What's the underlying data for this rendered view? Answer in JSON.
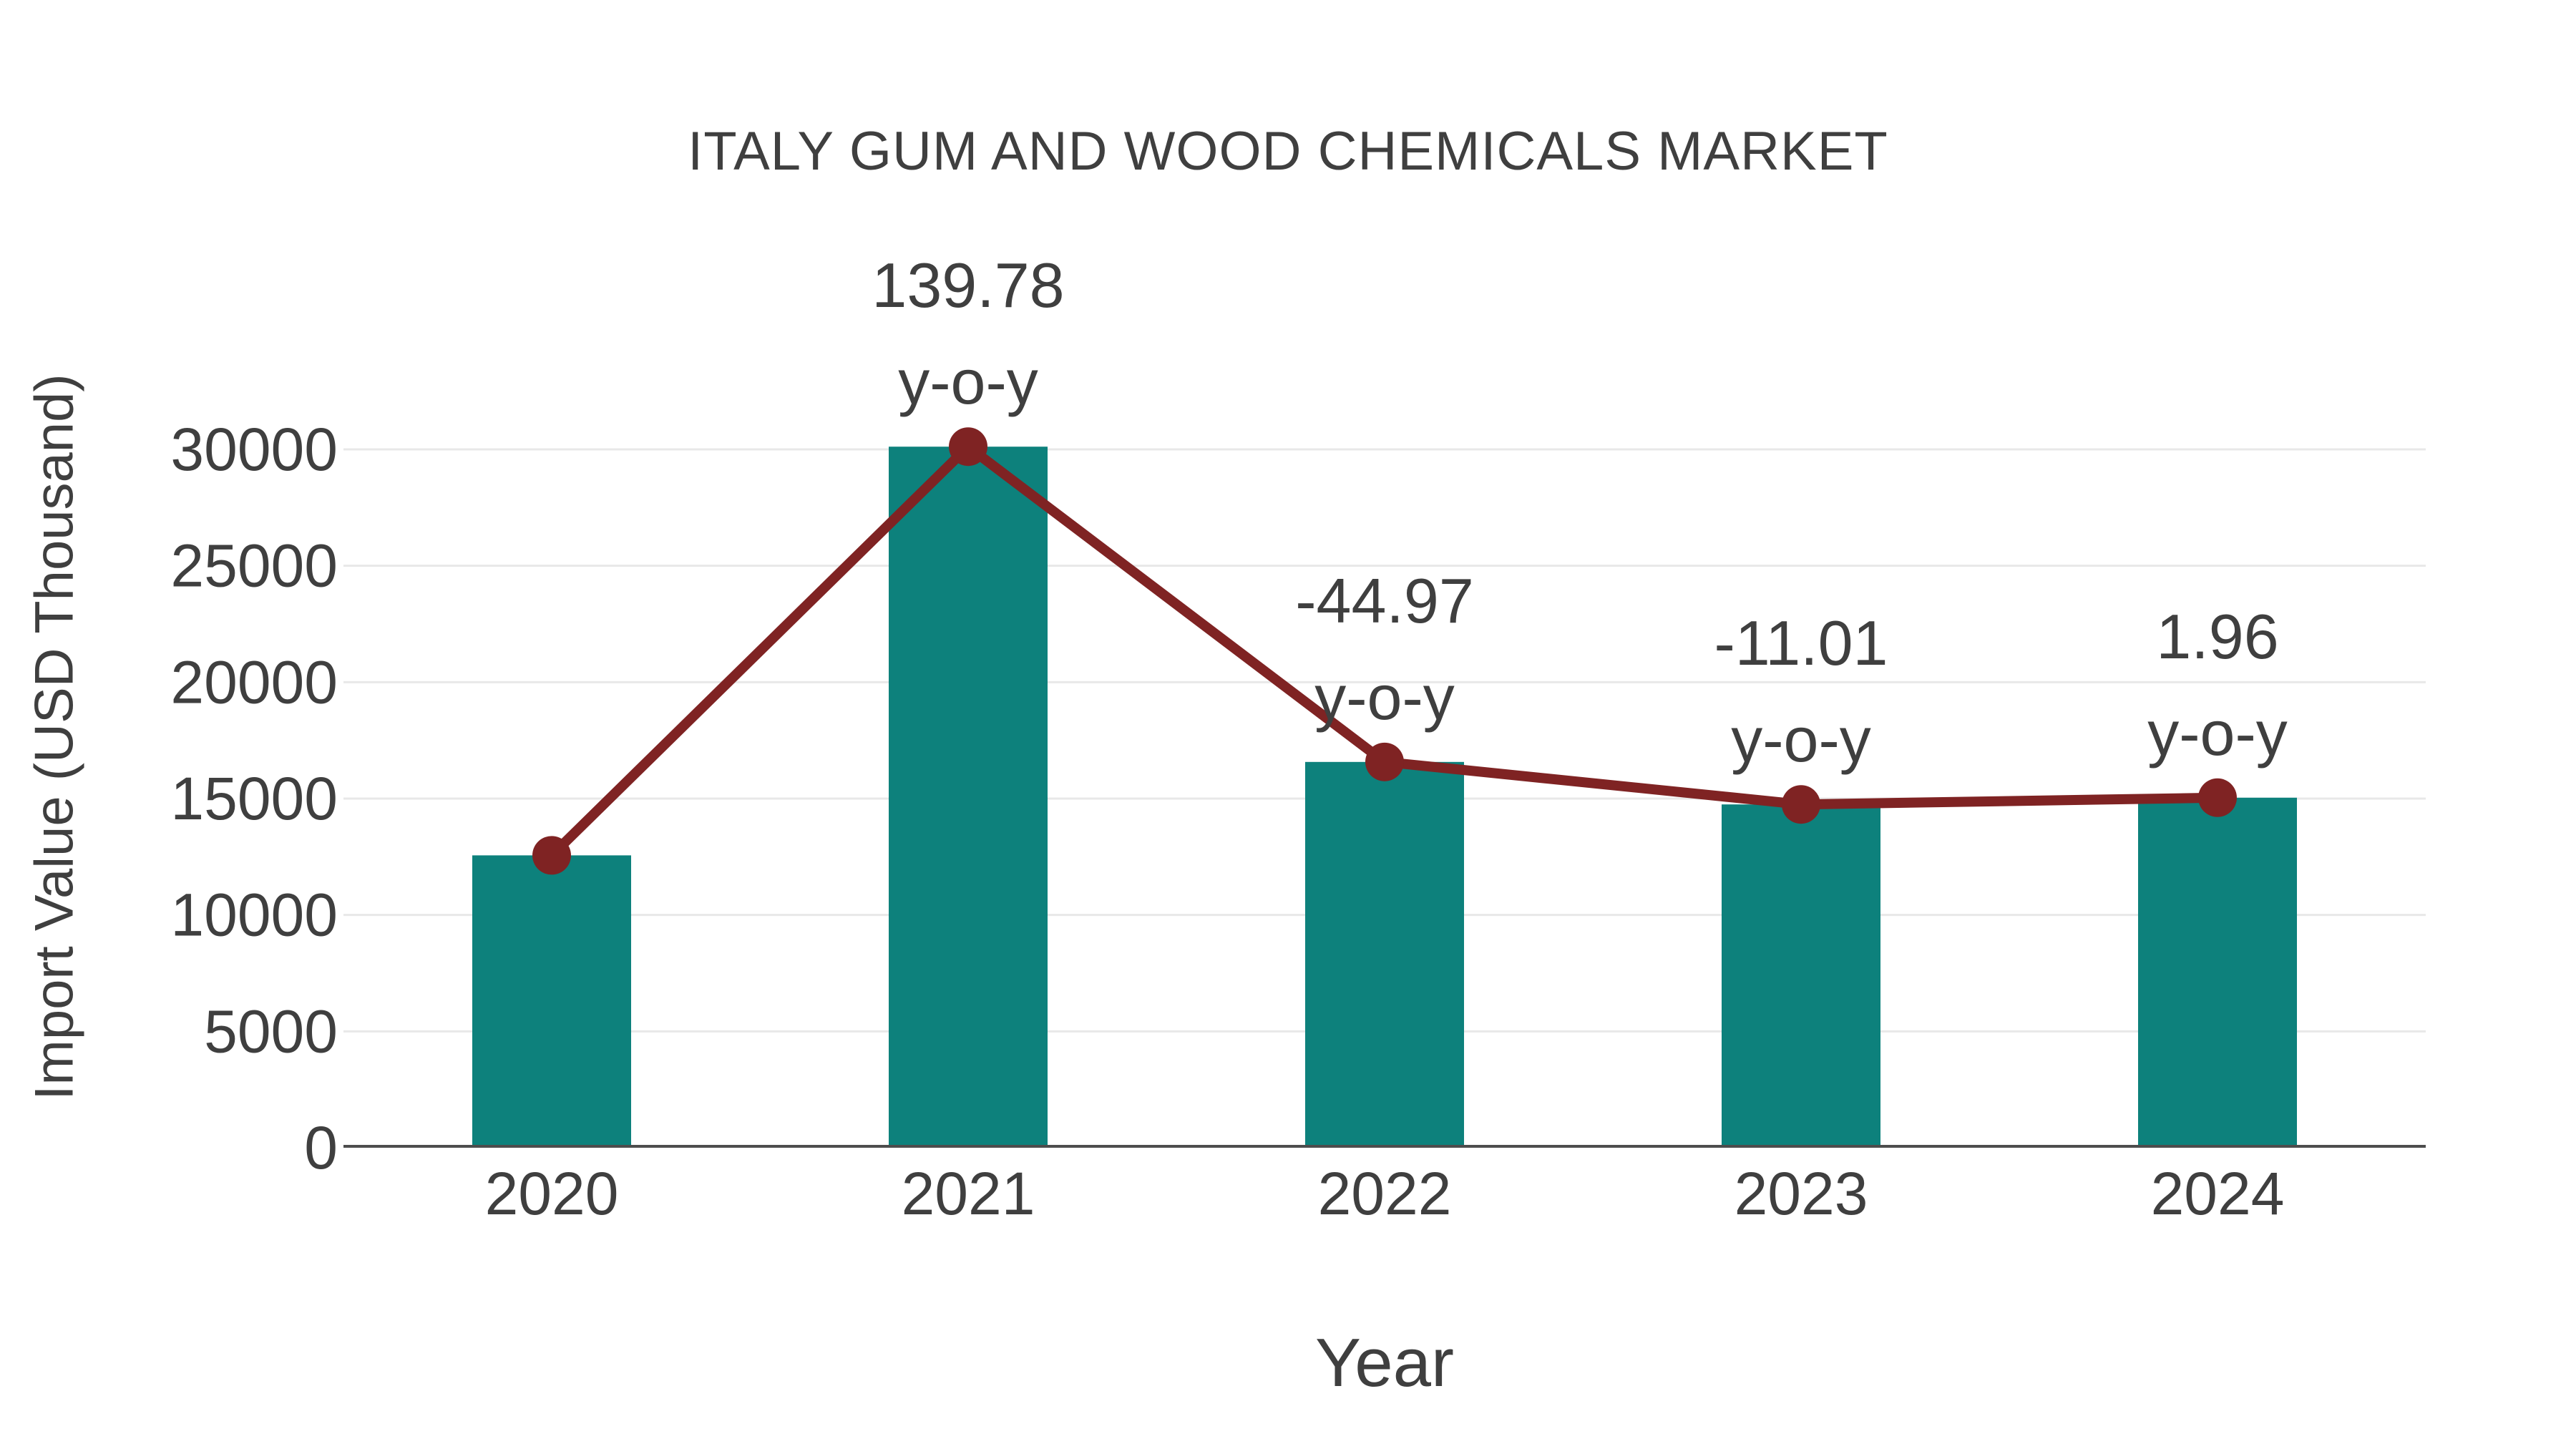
{
  "title": "ITALY GUM AND WOOD CHEMICALS MARKET",
  "colors": {
    "background": "#ffffff",
    "bar": "#0d817c",
    "line": "#7f2323",
    "marker": "#7f2323",
    "text": "#3f3f3f",
    "axis": "#4d4d4d",
    "grid": "#e8e8e8"
  },
  "chart_data": {
    "type": "bar",
    "title": "ITALY GUM AND WOOD CHEMICALS MARKET",
    "xlabel": "Year",
    "ylabel": "Import Value (USD Thousand)",
    "categories": [
      "2020",
      "2021",
      "2022",
      "2023",
      "2024"
    ],
    "series": [
      {
        "name": "Import Value (USD Thousand)",
        "type": "bar",
        "values": [
          12560,
          30116,
          16573,
          14748,
          15037
        ]
      },
      {
        "name": "y-o-y trend line",
        "type": "line",
        "values": [
          12560,
          30116,
          16573,
          14748,
          15037
        ]
      }
    ],
    "annotations": [
      {
        "category": "2021",
        "value_label": "139.78",
        "suffix_label": "y-o-y"
      },
      {
        "category": "2022",
        "value_label": "-44.97",
        "suffix_label": "y-o-y"
      },
      {
        "category": "2023",
        "value_label": "-11.01",
        "suffix_label": "y-o-y"
      },
      {
        "category": "2024",
        "value_label": "1.96",
        "suffix_label": "y-o-y"
      }
    ],
    "yticks": [
      0,
      5000,
      10000,
      15000,
      20000,
      25000,
      30000
    ],
    "ylim": [
      0,
      30000
    ],
    "grid": "horizontal",
    "legend": "none"
  }
}
